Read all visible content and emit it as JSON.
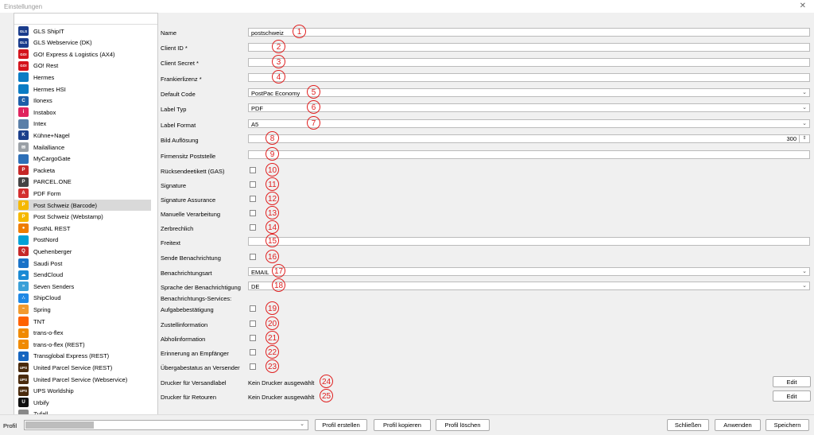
{
  "window": {
    "title": "Einstellungen",
    "close_glyph": "✕"
  },
  "sidebar": {
    "items": [
      {
        "label": "GLS ShipIT",
        "icon": "gls-logo-icon",
        "color": "#1a3c8c",
        "glyph": "GLS"
      },
      {
        "label": "GLS Webservice (DK)",
        "icon": "gls-logo-icon",
        "color": "#1a3c8c",
        "glyph": "GLS"
      },
      {
        "label": "GO! Express & Logistics (AX4)",
        "icon": "go-logo-icon",
        "color": "#d4141c",
        "glyph": "GO!"
      },
      {
        "label": "GO! Rest",
        "icon": "go-logo-icon",
        "color": "#d4141c",
        "glyph": "GO!"
      },
      {
        "label": "Hermes",
        "icon": "hermes-logo-icon",
        "color": "#0a7cc4",
        "glyph": ""
      },
      {
        "label": "Hermes HSI",
        "icon": "hermes-logo-icon",
        "color": "#0a7cc4",
        "glyph": ""
      },
      {
        "label": "Ilonexs",
        "icon": "ilonexs-logo-icon",
        "color": "#1d5ea8",
        "glyph": "C"
      },
      {
        "label": "Instabox",
        "icon": "instabox-logo-icon",
        "color": "#e0245e",
        "glyph": "i"
      },
      {
        "label": "Intex",
        "icon": "intex-logo-icon",
        "color": "#5a7fa8",
        "glyph": ""
      },
      {
        "label": "Kühne+Nagel",
        "icon": "kuehne-nagel-logo-icon",
        "color": "#1b3f8b",
        "glyph": "K"
      },
      {
        "label": "Mailalliance",
        "icon": "envelope-icon",
        "color": "#9aa0a6",
        "glyph": "✉"
      },
      {
        "label": "MyCargoGate",
        "icon": "mycargogate-logo-icon",
        "color": "#2d6fb7",
        "glyph": ""
      },
      {
        "label": "Packeta",
        "icon": "packeta-logo-icon",
        "color": "#c62828",
        "glyph": "P"
      },
      {
        "label": "PARCEL.ONE",
        "icon": "parcel-one-logo-icon",
        "color": "#444444",
        "glyph": "P"
      },
      {
        "label": "PDF Form",
        "icon": "pdf-icon",
        "color": "#d32f2f",
        "glyph": "A"
      },
      {
        "label": "Post Schweiz (Barcode)",
        "icon": "post-schweiz-logo-icon",
        "color": "#f5b800",
        "glyph": "P"
      },
      {
        "label": "Post Schweiz (Webstamp)",
        "icon": "post-schweiz-logo-icon",
        "color": "#f5b800",
        "glyph": "P"
      },
      {
        "label": "PostNL REST",
        "icon": "postnl-logo-icon",
        "color": "#ef7d00",
        "glyph": "●"
      },
      {
        "label": "PostNord",
        "icon": "postnord-logo-icon",
        "color": "#00a0d6",
        "glyph": ""
      },
      {
        "label": "Quehenberger",
        "icon": "quehenberger-logo-icon",
        "color": "#c62828",
        "glyph": "Q"
      },
      {
        "label": "Saudi Post",
        "icon": "saudi-post-logo-icon",
        "color": "#1a73c8",
        "glyph": "~"
      },
      {
        "label": "SendCloud",
        "icon": "sendcloud-logo-icon",
        "color": "#1a8ad4",
        "glyph": "☁"
      },
      {
        "label": "Seven Senders",
        "icon": "seven-senders-logo-icon",
        "color": "#3aa0d8",
        "glyph": "»"
      },
      {
        "label": "ShipCloud",
        "icon": "shipcloud-logo-icon",
        "color": "#1e88e5",
        "glyph": "∴"
      },
      {
        "label": "Spring",
        "icon": "spring-logo-icon",
        "color": "#f29a2e",
        "glyph": "~"
      },
      {
        "label": "TNT",
        "icon": "tnt-logo-icon",
        "color": "#ff6200",
        "glyph": ""
      },
      {
        "label": "trans-o-flex",
        "icon": "trans-o-flex-logo-icon",
        "color": "#f08a00",
        "glyph": "~"
      },
      {
        "label": "trans-o-flex (REST)",
        "icon": "trans-o-flex-logo-icon",
        "color": "#f08a00",
        "glyph": "~"
      },
      {
        "label": "Transglobal Express (REST)",
        "icon": "transglobal-logo-icon",
        "color": "#1565c0",
        "glyph": "●"
      },
      {
        "label": "United Parcel Service (REST)",
        "icon": "ups-logo-icon",
        "color": "#4a2a0c",
        "glyph": "UPS"
      },
      {
        "label": "United Parcel Service (Webservice)",
        "icon": "ups-logo-icon",
        "color": "#4a2a0c",
        "glyph": "UPS"
      },
      {
        "label": "UPS Worldship",
        "icon": "ups-logo-icon",
        "color": "#4a2a0c",
        "glyph": "UPS"
      },
      {
        "label": "Urbify",
        "icon": "urbify-logo-icon",
        "color": "#111111",
        "glyph": "U"
      },
      {
        "label": "Zufall",
        "icon": "zufall-icon",
        "color": "#888888",
        "glyph": ""
      }
    ],
    "selected_index": 15
  },
  "form": {
    "name": {
      "label": "Name",
      "value": "postschweiz",
      "marker": "1"
    },
    "client_id": {
      "label": "Client ID *",
      "value": "",
      "marker": "2"
    },
    "client_secret": {
      "label": "Client Secret *",
      "value": "",
      "marker": "3"
    },
    "frankierlizenz": {
      "label": "Frankierlizenz *",
      "value": "",
      "marker": "4"
    },
    "default_code": {
      "label": "Default Code",
      "value": "PostPac Economy",
      "marker": "5"
    },
    "label_typ": {
      "label": "Label Typ",
      "value": "PDF",
      "marker": "6"
    },
    "label_format": {
      "label": "Label Format",
      "value": "A5",
      "marker": "7"
    },
    "bild_aufloesung": {
      "label": "Bild Auflösung",
      "value": "300",
      "marker": "8"
    },
    "firmensitz": {
      "label": "Firmensitz Poststelle",
      "value": "",
      "marker": "9"
    },
    "ruecksendeetikett": {
      "label": "Rücksendeetikett (GAS)",
      "marker": "10"
    },
    "signature": {
      "label": "Signature",
      "marker": "11"
    },
    "signature_assurance": {
      "label": "Signature Assurance",
      "marker": "12"
    },
    "manuelle_verarbeitung": {
      "label": "Manuelle Verarbeitung",
      "marker": "13"
    },
    "zerbrechlich": {
      "label": "Zerbrechlich",
      "marker": "14"
    },
    "freitext": {
      "label": "Freitext",
      "value": "",
      "marker": "15"
    },
    "sende_benachrichtigung": {
      "label": "Sende Benachrichtung",
      "marker": "16"
    },
    "benachrichtungsart": {
      "label": "Benachrichtungsart",
      "value": "EMAIL",
      "marker": "17"
    },
    "sprache": {
      "label": "Sprache der Benachrichtigung",
      "value": "DE",
      "marker": "18"
    },
    "services_heading": "Benachrichtungs-Services:",
    "aufgabebestaetigung": {
      "label": "Aufgabebestätigung",
      "marker": "19"
    },
    "zustellinformation": {
      "label": "Zustellinformation",
      "marker": "20"
    },
    "abholinformation": {
      "label": "Abholinformation",
      "marker": "21"
    },
    "erinnerung": {
      "label": "Erinnerung an Empfänger",
      "marker": "22"
    },
    "uebergabestatus": {
      "label": "Übergabestatus an Versender",
      "marker": "23"
    },
    "drucker_versand": {
      "label": "Drucker für Versandlabel",
      "value": "Kein Drucker ausgewählt",
      "marker": "24",
      "button": "Edit"
    },
    "drucker_retouren": {
      "label": "Drucker für Retouren",
      "value": "Kein Drucker ausgewählt",
      "marker": "25",
      "button": "Edit"
    }
  },
  "bottom": {
    "profil_label": "Profil",
    "buttons": {
      "profil_erstellen": "Profil erstellen",
      "profil_kopieren": "Profil kopieren",
      "profil_loeschen": "Profil löschen",
      "schliessen": "Schließen",
      "anwenden": "Anwenden",
      "speichern": "Speichern"
    }
  }
}
